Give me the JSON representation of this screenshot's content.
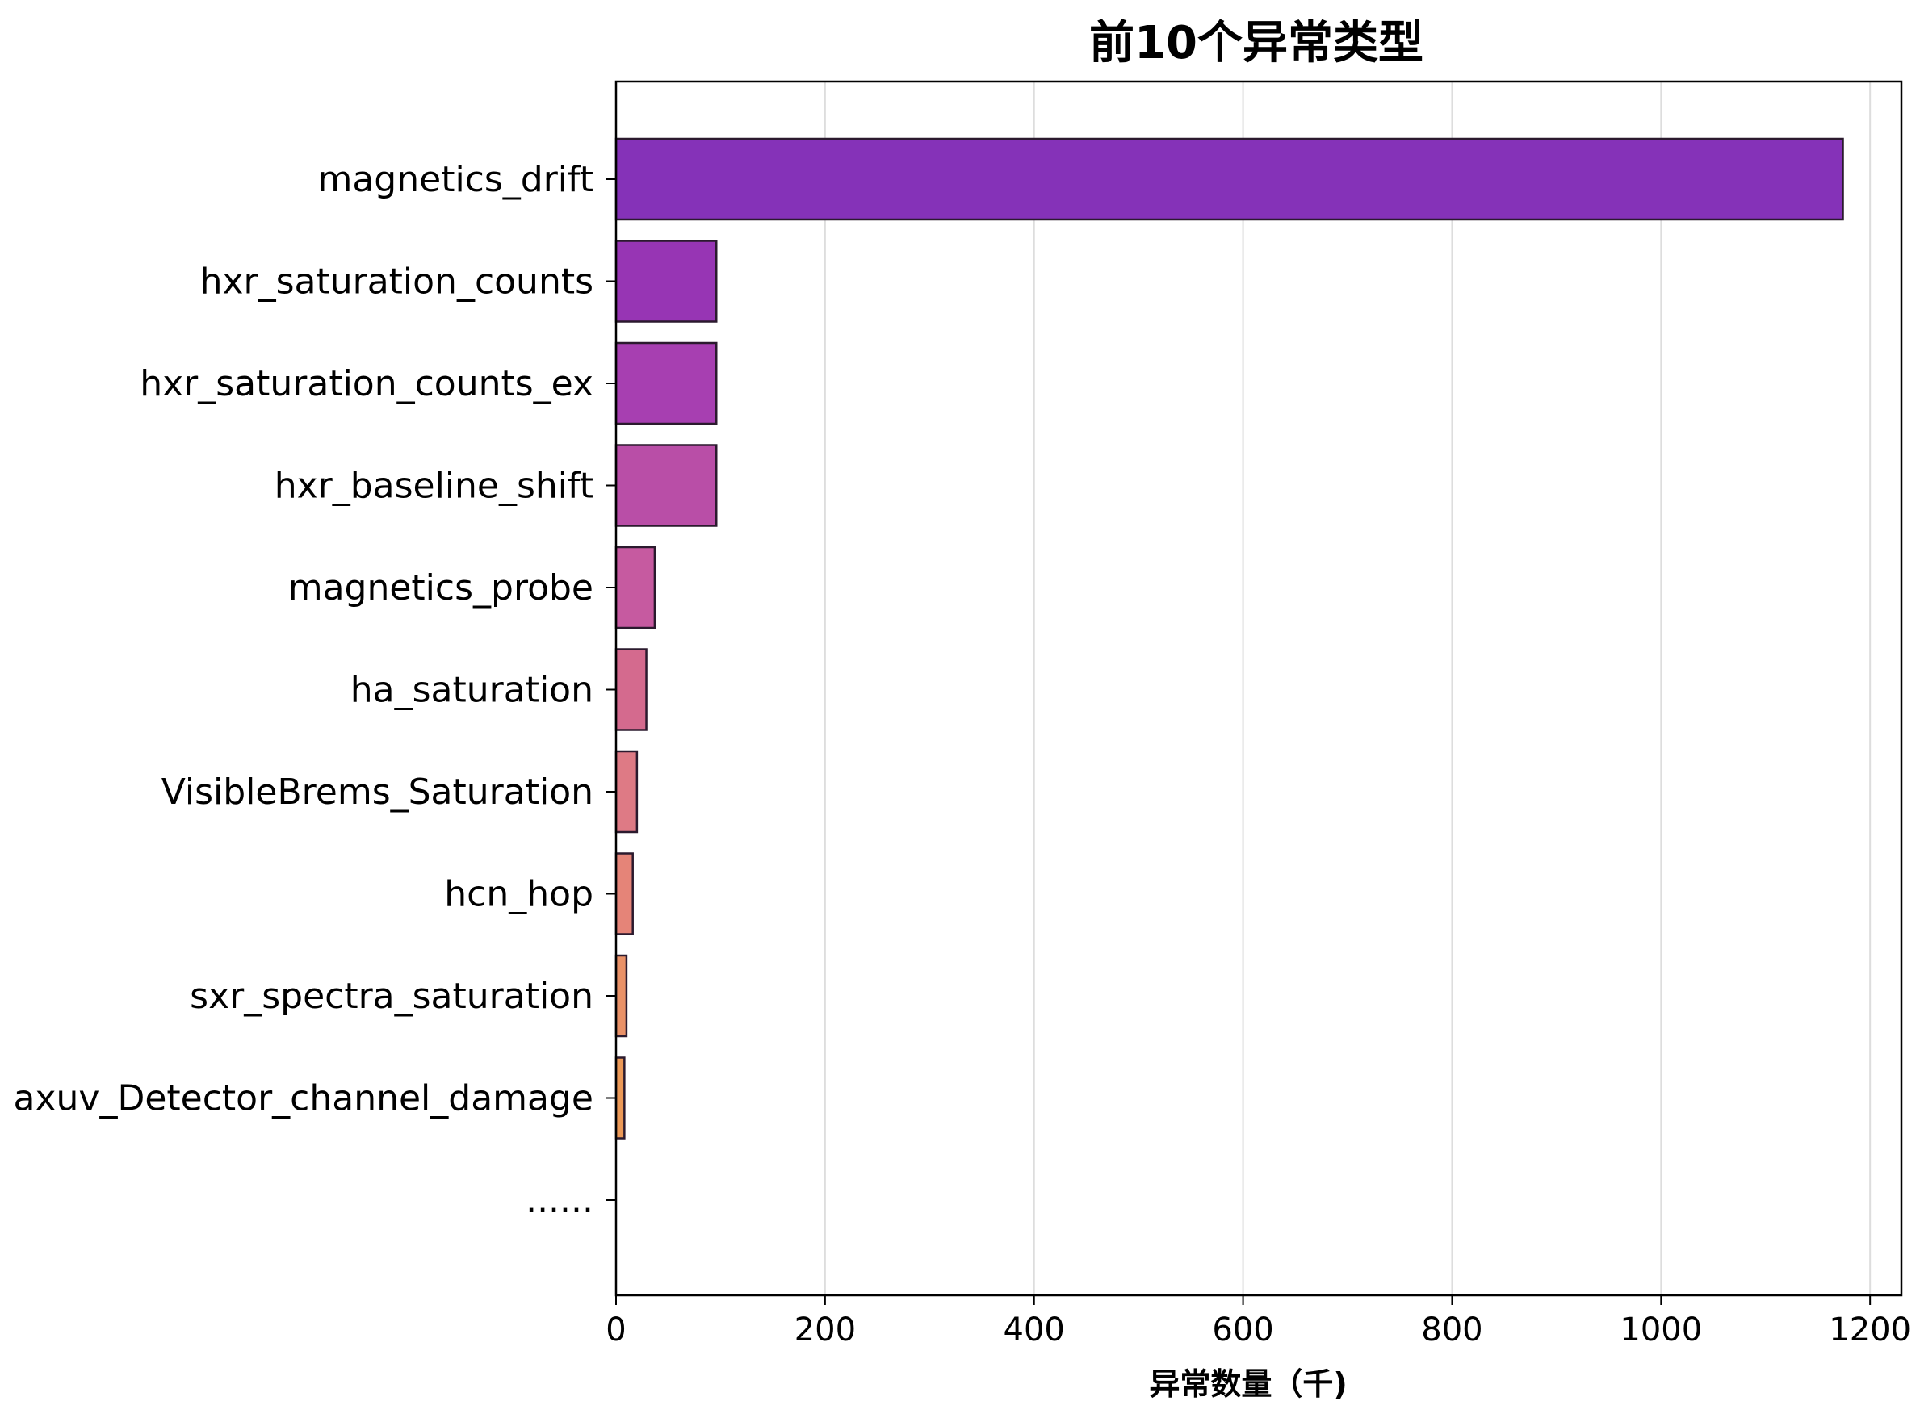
{
  "chart_data": {
    "type": "bar",
    "orientation": "horizontal",
    "title": "前10个异常类型",
    "xlabel": "异常数量（千)",
    "ylabel": "",
    "categories": [
      "magnetics_drift",
      "hxr_saturation_counts",
      "hxr_saturation_counts_ex",
      "hxr_baseline_shift",
      "magnetics_probe",
      "ha_saturation",
      "VisibleBrems_Saturation",
      "hcn_hop",
      "sxr_spectra_saturation",
      "axuv_Detector_channel_damage",
      "......"
    ],
    "values": [
      1174,
      96,
      96,
      96,
      37,
      29,
      20,
      16,
      10,
      8,
      0
    ],
    "colors": [
      "#8532b8",
      "#9735b4",
      "#a73fb1",
      "#b94ea7",
      "#c65aa0",
      "#d46a8e",
      "#de7a85",
      "#e58478",
      "#e99167",
      "#ec9957",
      "#f0a84a"
    ],
    "xlim": [
      0,
      1230
    ],
    "xticks": [
      0,
      200,
      400,
      600,
      800,
      1000,
      1200
    ],
    "grid": "x",
    "legend": "none"
  }
}
